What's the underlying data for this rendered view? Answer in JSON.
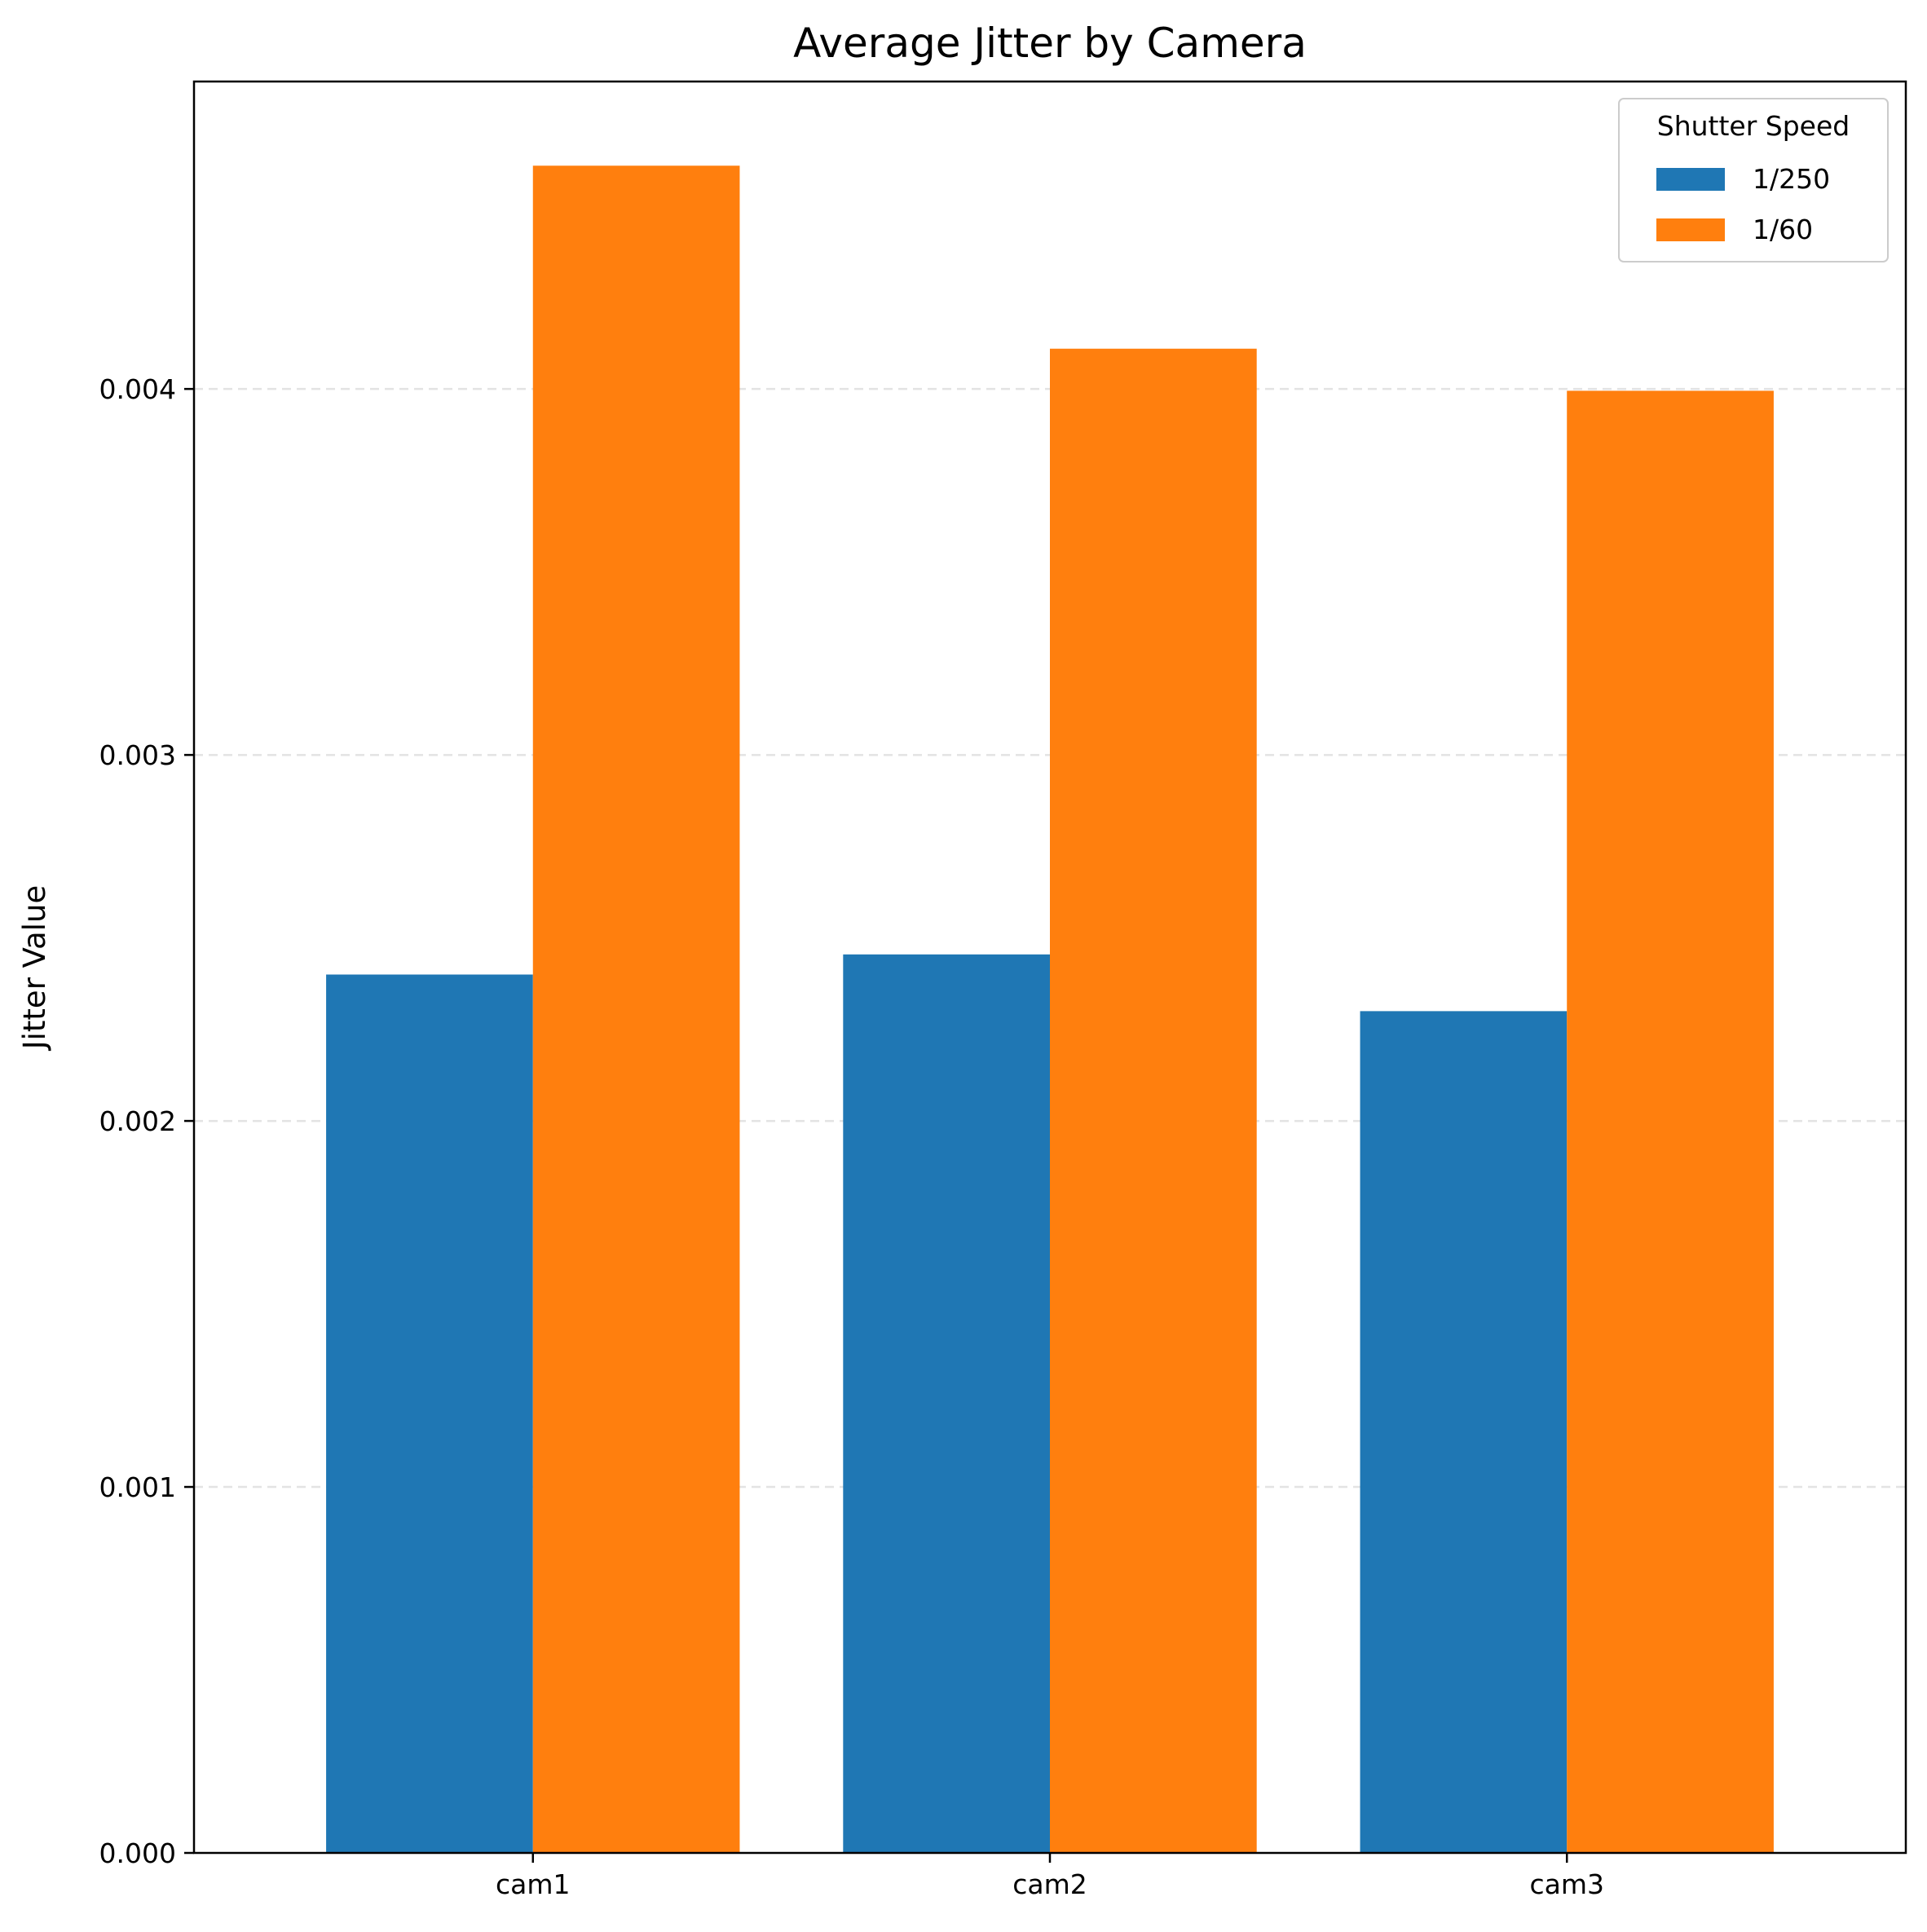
{
  "chart_data": {
    "type": "bar",
    "title": "Average Jitter by Camera",
    "xlabel": "",
    "ylabel": "Jitter Value",
    "categories": [
      "cam1",
      "cam2",
      "cam3"
    ],
    "series": [
      {
        "name": "1/250",
        "color": "#1f77b4",
        "values": [
          0.0024,
          0.002455,
          0.0023
        ]
      },
      {
        "name": "1/60",
        "color": "#ff7f0e",
        "values": [
          0.00461,
          0.00411,
          0.003995
        ]
      }
    ],
    "ylim": [
      0,
      0.00484
    ],
    "yticks": [
      0.0,
      0.001,
      0.002,
      0.003,
      0.004
    ],
    "ytick_labels": [
      "0.000",
      "0.001",
      "0.002",
      "0.003",
      "0.004"
    ],
    "grid": "y-dashed",
    "legend": {
      "title": "Shutter Speed",
      "position": "top-right"
    }
  }
}
